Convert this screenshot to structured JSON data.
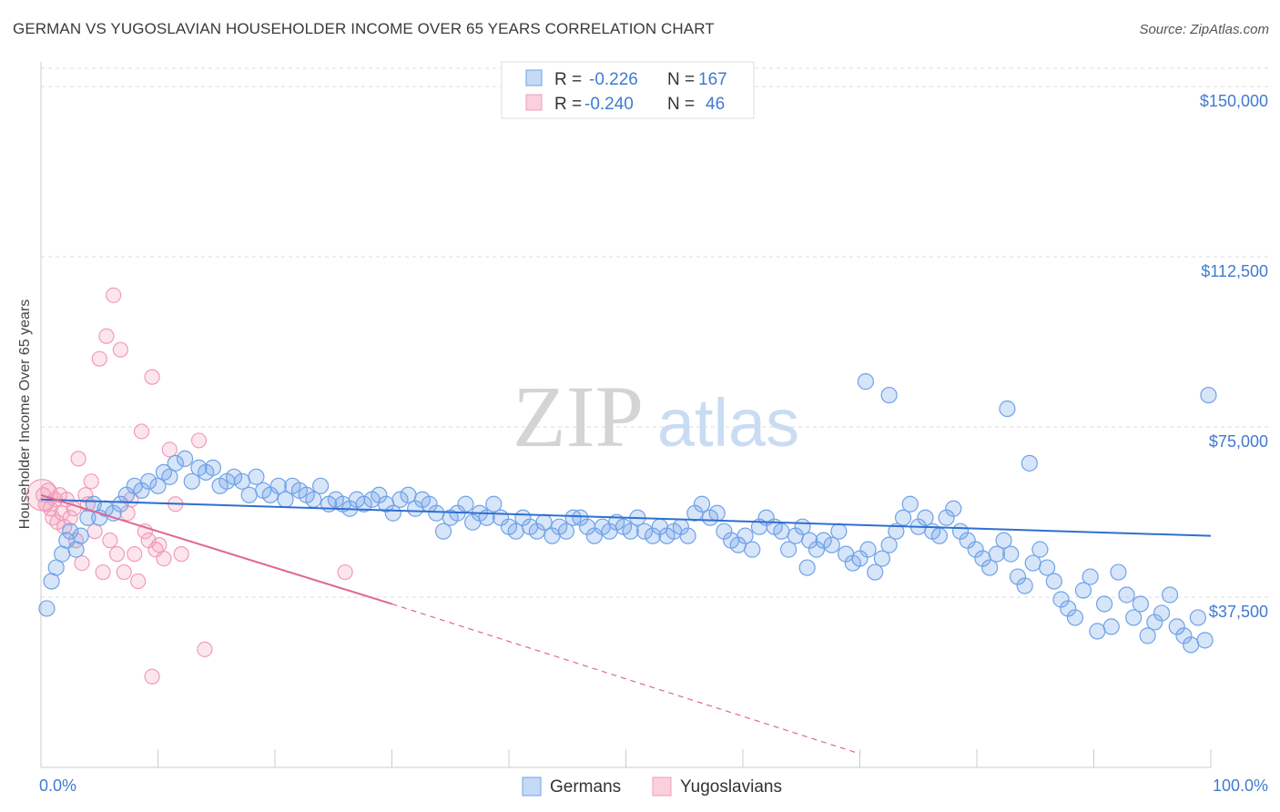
{
  "title": "GERMAN VS YUGOSLAVIAN HOUSEHOLDER INCOME OVER 65 YEARS CORRELATION CHART",
  "source": "Source: ZipAtlas.com",
  "watermark": {
    "zip": "ZIP",
    "atlas": "atlas"
  },
  "colors": {
    "blue": "#6fa2e8",
    "blue_line": "#2f6fd0",
    "pink": "#f29bb8",
    "pink_line": "#e0668f",
    "grid": "#dddddd",
    "tick_text": "#3f7bd1"
  },
  "legend": {
    "rows": [
      {
        "r_label": "R =",
        "r_value": "-0.226",
        "n_label": "N =",
        "n_value": "167"
      },
      {
        "r_label": "R =",
        "r_value": "-0.240",
        "n_label": "N =",
        "n_value": "46"
      }
    ]
  },
  "bottom_legend": [
    "Germans",
    "Yugoslavians"
  ],
  "chart_data": {
    "type": "scatter",
    "title": "GERMAN VS YUGOSLAVIAN HOUSEHOLDER INCOME OVER 65 YEARS CORRELATION CHART",
    "xlabel": "",
    "ylabel": "Householder Income Over 65 years",
    "x_tick_labels": [
      "0.0%",
      "100.0%"
    ],
    "y_tick_labels": [
      "$37,500",
      "$75,000",
      "$112,500",
      "$150,000"
    ],
    "y_ticks": [
      37500,
      75000,
      112500,
      150000
    ],
    "xlim": [
      0,
      100
    ],
    "ylim": [
      0,
      154000
    ],
    "series": [
      {
        "name": "Germans",
        "r": -0.226,
        "n": 167,
        "trend": {
          "x": [
            0,
            100
          ],
          "y": [
            59000,
            51000
          ]
        },
        "points": [
          [
            0.5,
            35000
          ],
          [
            0.9,
            41000
          ],
          [
            1.3,
            44000
          ],
          [
            1.8,
            47000
          ],
          [
            2.2,
            50000
          ],
          [
            2.5,
            52000
          ],
          [
            3,
            48000
          ],
          [
            3.4,
            51000
          ],
          [
            4,
            55000
          ],
          [
            4.5,
            58000
          ],
          [
            5,
            55000
          ],
          [
            5.5,
            57000
          ],
          [
            6.2,
            56000
          ],
          [
            6.8,
            58000
          ],
          [
            7.3,
            60000
          ],
          [
            8,
            62000
          ],
          [
            8.6,
            61000
          ],
          [
            9.2,
            63000
          ],
          [
            10,
            62000
          ],
          [
            10.5,
            65000
          ],
          [
            11,
            64000
          ],
          [
            11.5,
            67000
          ],
          [
            12.3,
            68000
          ],
          [
            12.9,
            63000
          ],
          [
            13.5,
            66000
          ],
          [
            14.1,
            65000
          ],
          [
            14.7,
            66000
          ],
          [
            15.3,
            62000
          ],
          [
            15.9,
            63000
          ],
          [
            16.5,
            64000
          ],
          [
            17.2,
            63000
          ],
          [
            17.8,
            60000
          ],
          [
            18.4,
            64000
          ],
          [
            19,
            61000
          ],
          [
            19.6,
            60000
          ],
          [
            20.3,
            62000
          ],
          [
            20.9,
            59000
          ],
          [
            21.5,
            62000
          ],
          [
            22.1,
            61000
          ],
          [
            22.7,
            60000
          ],
          [
            23.3,
            59000
          ],
          [
            23.9,
            62000
          ],
          [
            24.6,
            58000
          ],
          [
            25.2,
            59000
          ],
          [
            25.8,
            58000
          ],
          [
            26.4,
            57000
          ],
          [
            27,
            59000
          ],
          [
            27.6,
            58000
          ],
          [
            28.3,
            59000
          ],
          [
            28.9,
            60000
          ],
          [
            29.5,
            58000
          ],
          [
            30.1,
            56000
          ],
          [
            30.7,
            59000
          ],
          [
            31.4,
            60000
          ],
          [
            32,
            57000
          ],
          [
            32.6,
            59000
          ],
          [
            33.2,
            58000
          ],
          [
            33.8,
            56000
          ],
          [
            34.4,
            52000
          ],
          [
            35,
            55000
          ],
          [
            35.6,
            56000
          ],
          [
            36.3,
            58000
          ],
          [
            36.9,
            54000
          ],
          [
            37.5,
            56000
          ],
          [
            38.1,
            55000
          ],
          [
            38.7,
            58000
          ],
          [
            39.3,
            55000
          ],
          [
            40,
            53000
          ],
          [
            40.6,
            52000
          ],
          [
            41.2,
            55000
          ],
          [
            41.8,
            53000
          ],
          [
            42.4,
            52000
          ],
          [
            43,
            54000
          ],
          [
            43.7,
            51000
          ],
          [
            44.3,
            53000
          ],
          [
            44.9,
            52000
          ],
          [
            45.5,
            55000
          ],
          [
            46.1,
            55000
          ],
          [
            46.7,
            53000
          ],
          [
            47.3,
            51000
          ],
          [
            48,
            53000
          ],
          [
            48.6,
            52000
          ],
          [
            49.2,
            54000
          ],
          [
            49.8,
            53000
          ],
          [
            50.4,
            52000
          ],
          [
            51,
            55000
          ],
          [
            51.6,
            52000
          ],
          [
            52.3,
            51000
          ],
          [
            52.9,
            53000
          ],
          [
            53.5,
            51000
          ],
          [
            54.1,
            52000
          ],
          [
            54.7,
            53000
          ],
          [
            55.3,
            51000
          ],
          [
            55.9,
            56000
          ],
          [
            56.5,
            58000
          ],
          [
            57.2,
            55000
          ],
          [
            57.8,
            56000
          ],
          [
            58.4,
            52000
          ],
          [
            59,
            50000
          ],
          [
            59.6,
            49000
          ],
          [
            60.2,
            51000
          ],
          [
            60.8,
            48000
          ],
          [
            61.4,
            53000
          ],
          [
            62,
            55000
          ],
          [
            62.7,
            53000
          ],
          [
            63.3,
            52000
          ],
          [
            63.9,
            48000
          ],
          [
            64.5,
            51000
          ],
          [
            65.1,
            53000
          ],
          [
            65.7,
            50000
          ],
          [
            66.3,
            48000
          ],
          [
            66.9,
            50000
          ],
          [
            67.6,
            49000
          ],
          [
            68.2,
            52000
          ],
          [
            68.8,
            47000
          ],
          [
            69.4,
            45000
          ],
          [
            70,
            46000
          ],
          [
            70.7,
            48000
          ],
          [
            71.3,
            43000
          ],
          [
            71.9,
            46000
          ],
          [
            72.5,
            49000
          ],
          [
            73.1,
            52000
          ],
          [
            73.7,
            55000
          ],
          [
            74.3,
            58000
          ],
          [
            75,
            53000
          ],
          [
            75.6,
            55000
          ],
          [
            76.2,
            52000
          ],
          [
            76.8,
            51000
          ],
          [
            77.4,
            55000
          ],
          [
            78,
            57000
          ],
          [
            78.6,
            52000
          ],
          [
            79.2,
            50000
          ],
          [
            79.9,
            48000
          ],
          [
            80.5,
            46000
          ],
          [
            81.1,
            44000
          ],
          [
            81.7,
            47000
          ],
          [
            82.3,
            50000
          ],
          [
            82.9,
            47000
          ],
          [
            83.5,
            42000
          ],
          [
            84.1,
            40000
          ],
          [
            84.8,
            45000
          ],
          [
            85.4,
            48000
          ],
          [
            86,
            44000
          ],
          [
            86.6,
            41000
          ],
          [
            87.2,
            37000
          ],
          [
            87.8,
            35000
          ],
          [
            88.4,
            33000
          ],
          [
            89.1,
            39000
          ],
          [
            89.7,
            42000
          ],
          [
            90.3,
            30000
          ],
          [
            90.9,
            36000
          ],
          [
            91.5,
            31000
          ],
          [
            92.1,
            43000
          ],
          [
            92.8,
            38000
          ],
          [
            93.4,
            33000
          ],
          [
            94,
            36000
          ],
          [
            94.6,
            29000
          ],
          [
            95.2,
            32000
          ],
          [
            95.8,
            34000
          ],
          [
            96.5,
            38000
          ],
          [
            97.1,
            31000
          ],
          [
            97.7,
            29000
          ],
          [
            98.3,
            27000
          ],
          [
            98.9,
            33000
          ],
          [
            99.5,
            28000
          ],
          [
            65.5,
            44000
          ],
          [
            70.5,
            85000
          ],
          [
            72.5,
            82000
          ],
          [
            82.6,
            79000
          ],
          [
            84.5,
            67000
          ],
          [
            99.8,
            82000
          ]
        ]
      },
      {
        "name": "Yugoslavians",
        "r": -0.24,
        "n": 46,
        "trend": {
          "x": [
            0,
            30
          ],
          "y": [
            60000,
            36000
          ]
        },
        "trend_dashed": {
          "x": [
            30,
            70
          ],
          "y": [
            36000,
            3000
          ]
        },
        "points": [
          [
            0.2,
            60000
          ],
          [
            0.4,
            58000
          ],
          [
            0.6,
            61000
          ],
          [
            0.8,
            57000
          ],
          [
            1,
            55000
          ],
          [
            1.2,
            59000
          ],
          [
            1.4,
            54000
          ],
          [
            1.6,
            60000
          ],
          [
            1.8,
            56000
          ],
          [
            2,
            53000
          ],
          [
            2.2,
            59000
          ],
          [
            2.5,
            55000
          ],
          [
            2.8,
            57000
          ],
          [
            3,
            50000
          ],
          [
            3.2,
            68000
          ],
          [
            3.5,
            45000
          ],
          [
            3.8,
            60000
          ],
          [
            4,
            58000
          ],
          [
            4.3,
            63000
          ],
          [
            4.6,
            52000
          ],
          [
            5,
            90000
          ],
          [
            5.3,
            43000
          ],
          [
            5.6,
            95000
          ],
          [
            5.9,
            50000
          ],
          [
            6.2,
            104000
          ],
          [
            6.5,
            47000
          ],
          [
            6.8,
            92000
          ],
          [
            7.1,
            43000
          ],
          [
            7.4,
            56000
          ],
          [
            7.7,
            59000
          ],
          [
            8,
            47000
          ],
          [
            8.3,
            41000
          ],
          [
            8.6,
            74000
          ],
          [
            8.9,
            52000
          ],
          [
            9.2,
            50000
          ],
          [
            9.5,
            86000
          ],
          [
            9.8,
            48000
          ],
          [
            10.1,
            49000
          ],
          [
            10.5,
            46000
          ],
          [
            11,
            70000
          ],
          [
            11.5,
            58000
          ],
          [
            12,
            47000
          ],
          [
            14,
            26000
          ],
          [
            9.5,
            20000
          ],
          [
            13.5,
            72000
          ],
          [
            26,
            43000
          ]
        ]
      }
    ]
  }
}
